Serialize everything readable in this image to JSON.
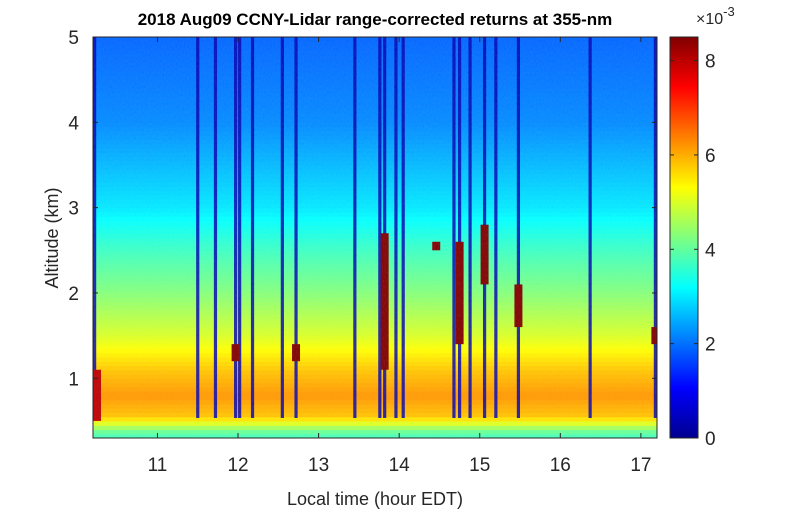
{
  "chart_data": {
    "type": "heatmap",
    "title": "2018 Aug09 CCNY-Lidar range-corrected returns at 355-nm",
    "xlabel": "Local time (hour EDT)",
    "ylabel": "Altitude (km)",
    "xlim": [
      10.2,
      17.2
    ],
    "ylim": [
      0.3,
      5.0
    ],
    "x_ticks": [
      "11",
      "12",
      "13",
      "14",
      "15",
      "16",
      "17"
    ],
    "y_ticks": [
      "1",
      "2",
      "3",
      "4",
      "5"
    ],
    "colorbar": {
      "colormap": "jet",
      "range": [
        0,
        0.0085
      ],
      "ticks": [
        "0",
        "2",
        "4",
        "6",
        "8"
      ],
      "exponent_label": "×10",
      "exponent_power": "-3"
    },
    "background_profile": [
      {
        "alt": 0.35,
        "value": 0.0038
      },
      {
        "alt": 0.55,
        "value": 0.0058
      },
      {
        "alt": 0.8,
        "value": 0.0062
      },
      {
        "alt": 1.1,
        "value": 0.0058
      },
      {
        "alt": 1.5,
        "value": 0.005
      },
      {
        "alt": 2.0,
        "value": 0.0043
      },
      {
        "alt": 2.5,
        "value": 0.0037
      },
      {
        "alt": 3.0,
        "value": 0.003
      },
      {
        "alt": 4.0,
        "value": 0.0022
      },
      {
        "alt": 5.0,
        "value": 0.0019
      }
    ],
    "low_signal_times_hour": [
      10.22,
      11.5,
      11.72,
      11.97,
      12.02,
      12.18,
      12.55,
      12.72,
      13.45,
      13.76,
      13.82,
      13.96,
      14.05,
      14.68,
      14.75,
      14.88,
      15.06,
      15.2,
      15.48,
      16.37,
      17.18
    ],
    "cloud_patches": [
      {
        "time": 10.25,
        "alt_bottom": 0.5,
        "alt_top": 1.1,
        "value": 0.008
      },
      {
        "time": 11.97,
        "alt_bottom": 1.2,
        "alt_top": 1.4,
        "value": 0.0085
      },
      {
        "time": 12.72,
        "alt_bottom": 1.2,
        "alt_top": 1.4,
        "value": 0.0085
      },
      {
        "time": 13.82,
        "alt_bottom": 1.1,
        "alt_top": 2.7,
        "value": 0.0085
      },
      {
        "time": 14.46,
        "alt_bottom": 2.5,
        "alt_top": 2.6,
        "value": 0.0085
      },
      {
        "time": 14.75,
        "alt_bottom": 1.4,
        "alt_top": 2.6,
        "value": 0.0085
      },
      {
        "time": 15.06,
        "alt_bottom": 2.1,
        "alt_top": 2.8,
        "value": 0.0085
      },
      {
        "time": 15.48,
        "alt_bottom": 1.6,
        "alt_top": 2.1,
        "value": 0.0085
      },
      {
        "time": 17.18,
        "alt_bottom": 1.4,
        "alt_top": 1.6,
        "value": 0.0085
      }
    ]
  }
}
